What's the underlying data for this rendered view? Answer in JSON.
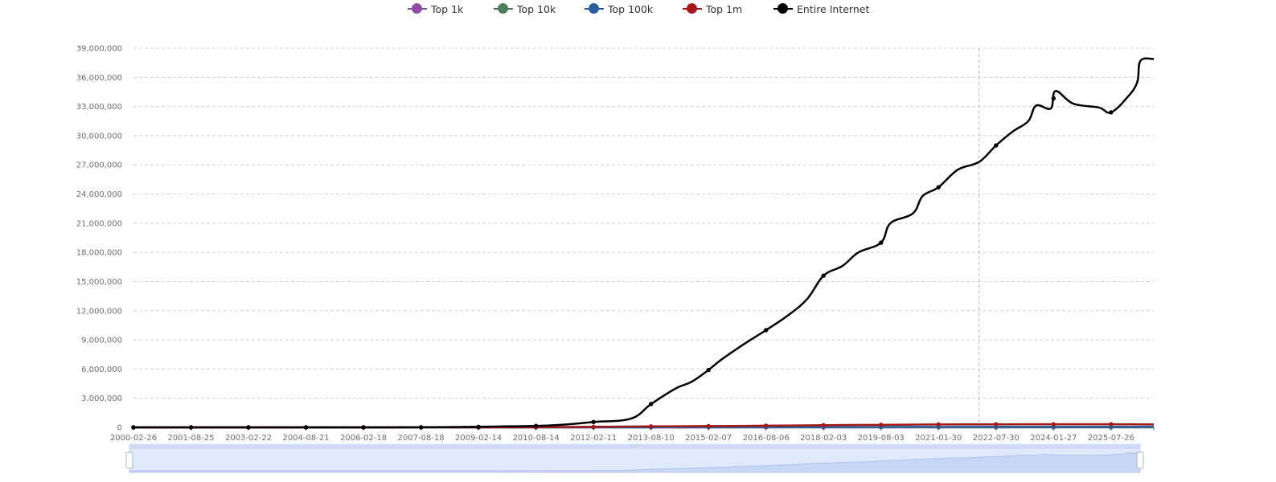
{
  "chart_data": {
    "type": "line",
    "title": "",
    "xlabel": "",
    "ylabel": "",
    "ylim": [
      0,
      39000000
    ],
    "y_ticks": [
      "0",
      "3,000,000",
      "6,000,000",
      "9,000,000",
      "12,000,000",
      "15,000,000",
      "18,000,000",
      "21,000,000",
      "24,000,000",
      "27,000,000",
      "30,000,000",
      "33,000,000",
      "36,000,000",
      "39,000,000"
    ],
    "x_tick_labels": [
      "2000-02-26",
      "2001-08-25",
      "2003-02-22",
      "2004-08-21",
      "2006-02-18",
      "2007-08-18",
      "2009-02-14",
      "2010-08-14",
      "2012-02-11",
      "2013-08-10",
      "2015-02-07",
      "2016-08-06",
      "2018-02-03",
      "2019-08-03",
      "2021-01-30",
      "2022-07-30",
      "2024-01-27",
      "2025-07-26"
    ],
    "x_range": [
      "2000-02-26",
      "2026-09-05"
    ],
    "grid": "horizontal dashed",
    "legend_position": "top-center",
    "hover_marker_x": "2022-02-19",
    "series": [
      {
        "name": "Top 1k",
        "color": "#8e4ea6",
        "points": [
          [
            "2000-02-26",
            0
          ],
          [
            "2026-09-05",
            600
          ]
        ]
      },
      {
        "name": "Top 10k",
        "color": "#4f7f5a",
        "points": [
          [
            "2000-02-26",
            0
          ],
          [
            "2026-09-05",
            5500
          ]
        ]
      },
      {
        "name": "Top 100k",
        "color": "#2b5e9c",
        "points": [
          [
            "2000-02-26",
            0
          ],
          [
            "2010-08-14",
            2000
          ],
          [
            "2015-02-07",
            20000
          ],
          [
            "2019-08-03",
            40000
          ],
          [
            "2022-07-30",
            55000
          ],
          [
            "2026-09-05",
            60000
          ]
        ]
      },
      {
        "name": "Top 1m",
        "color": "#a51818",
        "points": [
          [
            "2000-02-26",
            0
          ],
          [
            "2009-02-14",
            5000
          ],
          [
            "2010-08-14",
            20000
          ],
          [
            "2012-02-11",
            60000
          ],
          [
            "2013-08-10",
            100000
          ],
          [
            "2015-02-07",
            130000
          ],
          [
            "2016-08-06",
            170000
          ],
          [
            "2018-02-03",
            220000
          ],
          [
            "2019-08-03",
            260000
          ],
          [
            "2021-01-30",
            300000
          ],
          [
            "2022-07-30",
            310000
          ],
          [
            "2024-01-27",
            320000
          ],
          [
            "2025-07-26",
            320000
          ],
          [
            "2026-09-05",
            300000
          ]
        ]
      },
      {
        "name": "Entire Internet",
        "color": "#000000",
        "points": [
          [
            "2000-02-26",
            0
          ],
          [
            "2001-08-25",
            0
          ],
          [
            "2003-02-22",
            0
          ],
          [
            "2004-08-21",
            0
          ],
          [
            "2006-02-18",
            0
          ],
          [
            "2007-08-18",
            10000
          ],
          [
            "2009-02-14",
            60000
          ],
          [
            "2010-08-14",
            150000
          ],
          [
            "2011-06-01",
            300000
          ],
          [
            "2012-02-11",
            550000
          ],
          [
            "2013-02-01",
            900000
          ],
          [
            "2013-08-10",
            2400000
          ],
          [
            "2014-04-01",
            4000000
          ],
          [
            "2014-09-01",
            4700000
          ],
          [
            "2015-02-07",
            5900000
          ],
          [
            "2015-06-01",
            6900000
          ],
          [
            "2016-01-01",
            8500000
          ],
          [
            "2016-08-06",
            10000000
          ],
          [
            "2017-03-01",
            11500000
          ],
          [
            "2017-09-01",
            13200000
          ],
          [
            "2018-02-03",
            15600000
          ],
          [
            "2018-08-01",
            16600000
          ],
          [
            "2019-01-01",
            18000000
          ],
          [
            "2019-08-03",
            19000000
          ],
          [
            "2019-11-01",
            21000000
          ],
          [
            "2020-06-01",
            22000000
          ],
          [
            "2020-09-01",
            23800000
          ],
          [
            "2021-01-30",
            24700000
          ],
          [
            "2021-08-01",
            26500000
          ],
          [
            "2022-02-19",
            27300000
          ],
          [
            "2022-07-30",
            29000000
          ],
          [
            "2023-01-01",
            30400000
          ],
          [
            "2023-06-01",
            31500000
          ],
          [
            "2023-08-15",
            33100000
          ],
          [
            "2024-01-01",
            32800000
          ],
          [
            "2024-02-15",
            34600000
          ],
          [
            "2024-08-01",
            33300000
          ],
          [
            "2025-04-01",
            32900000
          ],
          [
            "2025-07-26",
            32400000
          ],
          [
            "2026-01-01",
            34000000
          ],
          [
            "2026-04-01",
            35500000
          ],
          [
            "2026-05-01",
            37700000
          ],
          [
            "2026-09-05",
            37900000
          ]
        ]
      }
    ],
    "data_zoom": {
      "range": [
        "2000-02-26",
        "2026-09-05"
      ]
    }
  }
}
